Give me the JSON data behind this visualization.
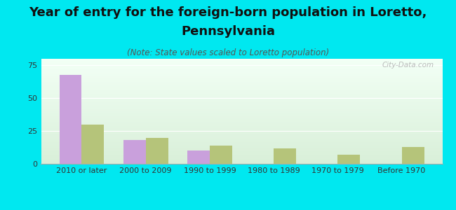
{
  "title_line1": "Year of entry for the foreign-born population in Loretto,",
  "title_line2": "Pennsylvania",
  "subtitle": "(Note: State values scaled to Loretto population)",
  "categories": [
    "2010 or later",
    "2000 to 2009",
    "1990 to 1999",
    "1980 to 1989",
    "1970 to 1979",
    "Before 1970"
  ],
  "loretto_values": [
    68,
    18,
    10,
    0,
    0,
    0
  ],
  "pennsylvania_values": [
    30,
    20,
    14,
    12,
    7,
    13
  ],
  "loretto_color": "#c9a0dc",
  "pennsylvania_color": "#b5c47a",
  "background_color": "#00e8f0",
  "ylim": [
    0,
    80
  ],
  "yticks": [
    0,
    25,
    50,
    75
  ],
  "bar_width": 0.35,
  "watermark": "City-Data.com",
  "title_fontsize": 13,
  "subtitle_fontsize": 8.5,
  "legend_fontsize": 10,
  "tick_fontsize": 8
}
